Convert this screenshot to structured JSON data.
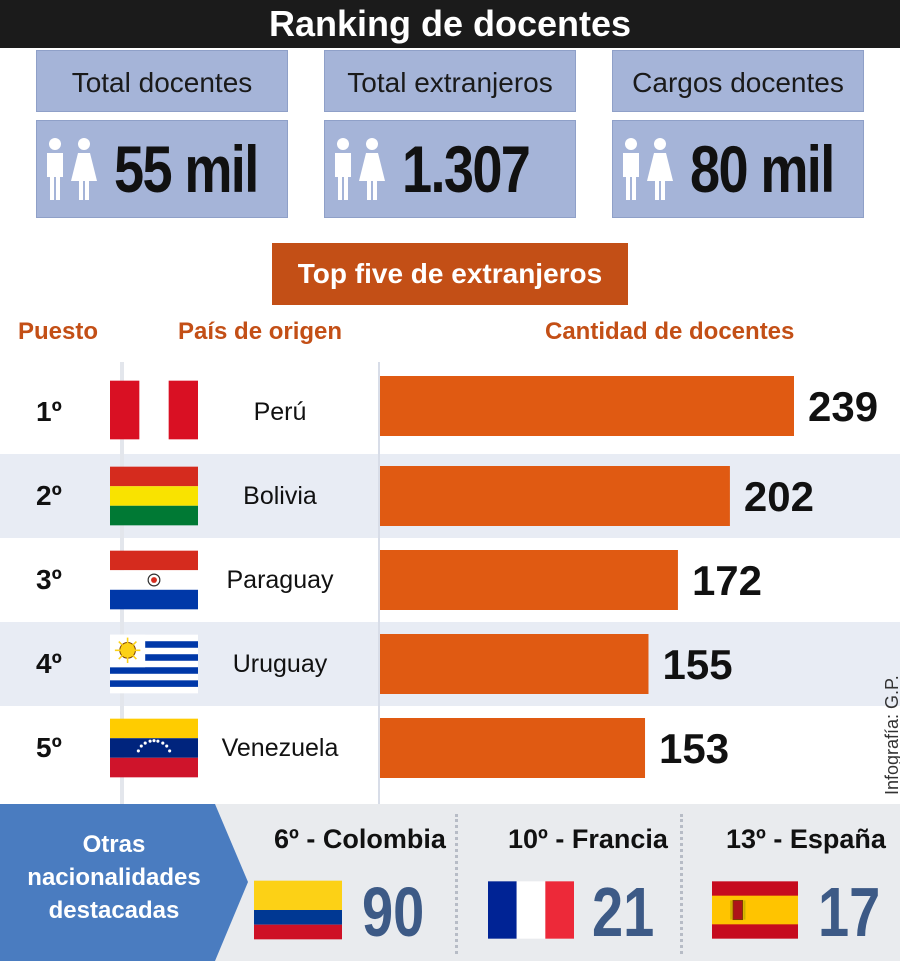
{
  "title": "Ranking de docentes",
  "stats": [
    {
      "label": "Total docentes",
      "value": "55 mil",
      "icon": "man-woman-icon"
    },
    {
      "label": "Total extranjeros",
      "value": "1.307",
      "icon": "man-woman-icon"
    },
    {
      "label": "Cargos docentes",
      "value": "80 mil",
      "icon": "man-woman-icon"
    }
  ],
  "top5_title": "Top five de extranjeros",
  "columns": {
    "rank": "Puesto",
    "country": "País de origen",
    "count": "Cantidad de docentes"
  },
  "credit": "Infografía: G.P.",
  "colors": {
    "accent": "#c34f16",
    "bar": "#e05a12",
    "stat_box": "#a5b4d8",
    "number_blue": "#3d5a86",
    "alt_row": "#e8ecf4"
  },
  "chart_data": {
    "type": "bar",
    "orientation": "horizontal",
    "title": "Top five de extranjeros",
    "xlabel": "Cantidad de docentes",
    "ylabel": "País de origen",
    "ranks": [
      "1º",
      "2º",
      "3º",
      "4º",
      "5º"
    ],
    "categories": [
      "Perú",
      "Bolivia",
      "Paraguay",
      "Uruguay",
      "Venezuela"
    ],
    "values": [
      239,
      202,
      172,
      155,
      153
    ],
    "flags": [
      "peru-flag",
      "bolivia-flag",
      "paraguay-flag",
      "uruguay-flag",
      "venezuela-flag"
    ]
  },
  "others": {
    "label": "Otras nacionalidades destacadas",
    "items": [
      {
        "title": "6º - Colombia",
        "value": "90",
        "flag": "colombia-flag"
      },
      {
        "title": "10º - Francia",
        "value": "21",
        "flag": "france-flag"
      },
      {
        "title": "13º - España",
        "value": "17",
        "flag": "spain-flag"
      }
    ]
  }
}
